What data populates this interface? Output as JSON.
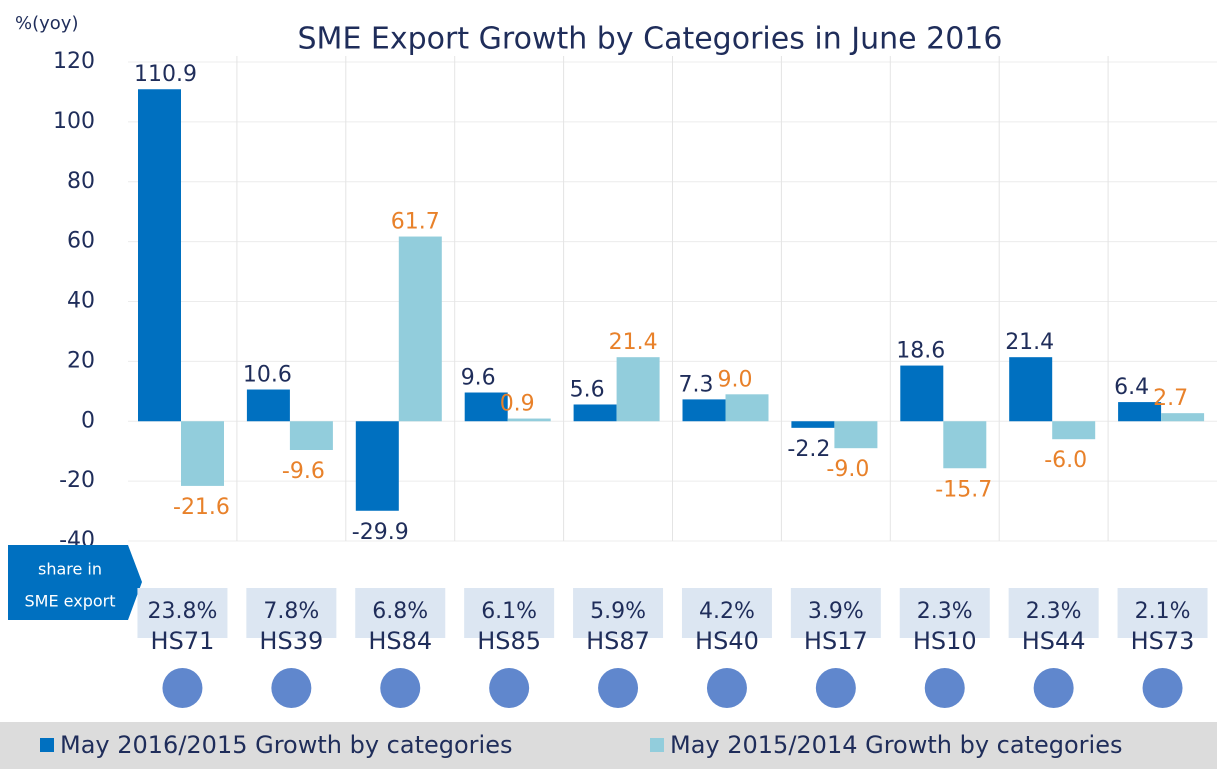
{
  "chart_data": {
    "type": "bar",
    "title": "SME Export Growth by Categories in June 2016",
    "y_label": "%(yoy)",
    "share_label": "share in SME export",
    "categories": [
      "HS71",
      "HS39",
      "HS84",
      "HS85",
      "HS87",
      "HS40",
      "HS17",
      "HS10",
      "HS44",
      "HS73"
    ],
    "shares": [
      "23.8%",
      "7.8%",
      "6.8%",
      "6.1%",
      "5.9%",
      "4.2%",
      "3.9%",
      "2.3%",
      "2.3%",
      "2.1%"
    ],
    "series": [
      {
        "name": "May 2016/2015 Growth by categories",
        "color": "#0070c0",
        "label_color": "#1f2d5a",
        "values": [
          110.9,
          10.6,
          -29.9,
          9.6,
          5.6,
          7.3,
          -2.2,
          18.6,
          21.4,
          6.4
        ]
      },
      {
        "name": "May 2015/2014 Growth by categories",
        "color": "#92cddc",
        "label_color": "#e8812a",
        "values": [
          -21.6,
          -9.6,
          61.7,
          0.9,
          21.4,
          9.0,
          -9.0,
          -15.7,
          -6.0,
          2.7
        ],
        "value_labels": [
          "-21.6",
          "-9.6",
          "61.7",
          "0.9",
          "21.4",
          "9.0",
          "-9.0",
          "-15.7",
          "-6.0",
          "2.7"
        ]
      }
    ],
    "ylim": [
      -40,
      120
    ],
    "yticks": [
      -40,
      -20,
      0,
      20,
      40,
      60,
      80,
      100,
      120
    ],
    "grid": true
  }
}
